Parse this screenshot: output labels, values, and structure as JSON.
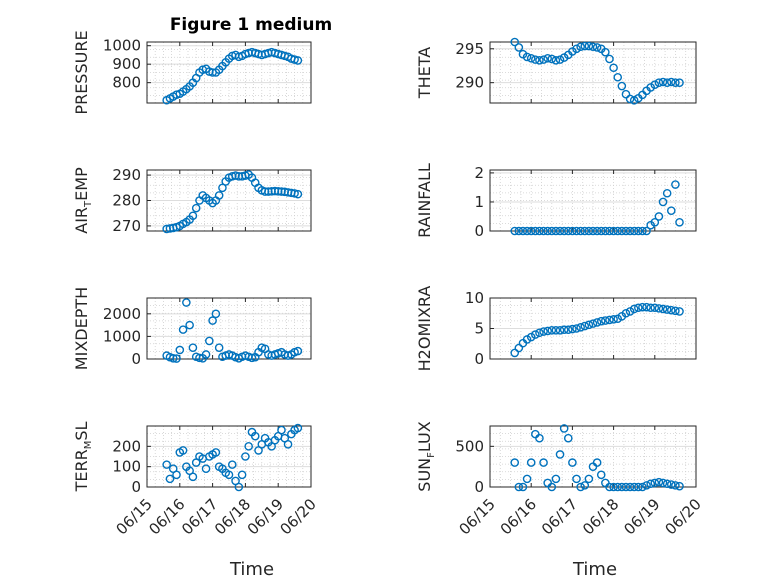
{
  "figure": {
    "title": "Figure 1 medium",
    "x_axis_label": "Time",
    "marker_color": "#0072BD",
    "grid_color": "#cfcfcf"
  },
  "chart_data": [
    {
      "type": "scatter",
      "id": "pressure",
      "ylabel": "PRESSURE",
      "xlim": [
        0,
        5
      ],
      "ylim": [
        690,
        1020
      ],
      "yticks": [
        800,
        900,
        1000
      ],
      "xticks": [
        0,
        1,
        2,
        3,
        4,
        5
      ],
      "xticklabels": [],
      "grid": true,
      "x": [
        0.6,
        0.7,
        0.8,
        0.9,
        1.0,
        1.1,
        1.2,
        1.3,
        1.4,
        1.5,
        1.6,
        1.7,
        1.8,
        1.9,
        2.0,
        2.1,
        2.2,
        2.3,
        2.4,
        2.5,
        2.6,
        2.7,
        2.8,
        2.9,
        3.0,
        3.1,
        3.2,
        3.3,
        3.4,
        3.5,
        3.6,
        3.7,
        3.8,
        3.9,
        4.0,
        4.1,
        4.2,
        4.3,
        4.4,
        4.5,
        4.6
      ],
      "y": [
        705,
        715,
        725,
        735,
        740,
        752,
        765,
        780,
        800,
        825,
        855,
        870,
        875,
        860,
        855,
        855,
        870,
        890,
        910,
        930,
        945,
        950,
        940,
        945,
        955,
        960,
        965,
        960,
        955,
        950,
        955,
        960,
        965,
        960,
        955,
        950,
        945,
        940,
        930,
        925,
        920
      ]
    },
    {
      "type": "scatter",
      "id": "theta",
      "ylabel": "THETA",
      "xlim": [
        0,
        5
      ],
      "ylim": [
        287,
        296
      ],
      "yticks": [
        290,
        295
      ],
      "xticks": [
        0,
        1,
        2,
        3,
        4,
        5
      ],
      "xticklabels": [],
      "grid": true,
      "x": [
        0.6,
        0.7,
        0.8,
        0.9,
        1.0,
        1.1,
        1.2,
        1.3,
        1.4,
        1.5,
        1.6,
        1.7,
        1.8,
        1.9,
        2.0,
        2.1,
        2.2,
        2.3,
        2.4,
        2.5,
        2.6,
        2.7,
        2.8,
        2.9,
        3.0,
        3.1,
        3.2,
        3.3,
        3.4,
        3.5,
        3.6,
        3.7,
        3.8,
        3.9,
        4.0,
        4.1,
        4.2,
        4.3,
        4.4,
        4.5,
        4.6
      ],
      "y": [
        296,
        295.2,
        294.2,
        293.8,
        293.6,
        293.4,
        293.3,
        293.4,
        293.6,
        293.5,
        293.3,
        293.4,
        293.7,
        294.1,
        294.6,
        295.0,
        295.3,
        295.4,
        295.4,
        295.3,
        295.2,
        295.0,
        294.5,
        293.5,
        292.2,
        290.8,
        289.5,
        288.3,
        287.6,
        287.4,
        287.7,
        288.2,
        288.8,
        289.3,
        289.7,
        290.0,
        290.1,
        290.0,
        290.1,
        290.0,
        290.0
      ]
    },
    {
      "type": "scatter",
      "id": "air_temp",
      "ylabel": "AIR",
      "ylabel_sub": "T",
      "ylabel_rest": "EMP",
      "xlim": [
        0,
        5
      ],
      "ylim": [
        268,
        292
      ],
      "yticks": [
        270,
        280,
        290
      ],
      "xticks": [
        0,
        1,
        2,
        3,
        4,
        5
      ],
      "xticklabels": [],
      "grid": true,
      "x": [
        0.6,
        0.7,
        0.8,
        0.9,
        1.0,
        1.1,
        1.2,
        1.3,
        1.4,
        1.5,
        1.6,
        1.7,
        1.8,
        1.9,
        2.0,
        2.1,
        2.2,
        2.3,
        2.4,
        2.5,
        2.6,
        2.7,
        2.8,
        2.9,
        3.0,
        3.1,
        3.2,
        3.3,
        3.4,
        3.5,
        3.6,
        3.7,
        3.8,
        3.9,
        4.0,
        4.1,
        4.2,
        4.3,
        4.4,
        4.5,
        4.6
      ],
      "y": [
        268.8,
        269.0,
        269.2,
        269.5,
        270.0,
        270.8,
        271.5,
        272.5,
        274,
        277,
        280,
        282,
        281,
        280,
        279,
        280,
        282,
        285,
        287.5,
        289,
        289.5,
        289.8,
        289.5,
        289.5,
        289.8,
        290.2,
        289,
        287,
        285,
        284,
        283.5,
        283.5,
        283.6,
        283.7,
        283.6,
        283.5,
        283.4,
        283.2,
        283.0,
        282.8,
        282.5
      ]
    },
    {
      "type": "scatter",
      "id": "rainfall",
      "ylabel": "RAINFALL",
      "xlim": [
        0,
        5
      ],
      "ylim": [
        0,
        2.1
      ],
      "yticks": [
        0,
        1,
        2
      ],
      "xticks": [
        0,
        1,
        2,
        3,
        4,
        5
      ],
      "xticklabels": [],
      "grid": true,
      "x": [
        0.6,
        0.7,
        0.8,
        0.9,
        1.0,
        1.1,
        1.2,
        1.3,
        1.4,
        1.5,
        1.6,
        1.7,
        1.8,
        1.9,
        2.0,
        2.1,
        2.2,
        2.3,
        2.4,
        2.5,
        2.6,
        2.7,
        2.8,
        2.9,
        3.0,
        3.1,
        3.2,
        3.3,
        3.4,
        3.5,
        3.6,
        3.7,
        3.8,
        3.9,
        4.0,
        4.1,
        4.2,
        4.3,
        4.4,
        4.5,
        4.6
      ],
      "y": [
        0,
        0,
        0,
        0,
        0,
        0,
        0,
        0,
        0,
        0,
        0,
        0,
        0,
        0,
        0,
        0,
        0,
        0,
        0,
        0,
        0,
        0,
        0,
        0,
        0,
        0,
        0,
        0,
        0,
        0,
        0,
        0,
        0,
        0.2,
        0.3,
        0.5,
        1.0,
        1.3,
        0.7,
        1.6,
        0.3
      ]
    },
    {
      "type": "scatter",
      "id": "mixdepth",
      "ylabel": "MIXDEPTH",
      "xlim": [
        0,
        5
      ],
      "ylim": [
        0,
        2700
      ],
      "yticks": [
        0,
        1000,
        2000
      ],
      "xticks": [
        0,
        1,
        2,
        3,
        4,
        5
      ],
      "xticklabels": [],
      "grid": true,
      "x": [
        0.6,
        0.7,
        0.8,
        0.9,
        1.0,
        1.1,
        1.2,
        1.3,
        1.4,
        1.5,
        1.6,
        1.7,
        1.8,
        1.9,
        2.0,
        2.1,
        2.2,
        2.3,
        2.4,
        2.5,
        2.6,
        2.7,
        2.8,
        2.9,
        3.0,
        3.1,
        3.2,
        3.3,
        3.4,
        3.5,
        3.6,
        3.7,
        3.8,
        3.9,
        4.0,
        4.1,
        4.2,
        4.3,
        4.4,
        4.5,
        4.6
      ],
      "y": [
        150,
        80,
        30,
        20,
        400,
        1300,
        2500,
        1500,
        500,
        100,
        50,
        30,
        200,
        800,
        1700,
        2000,
        500,
        100,
        150,
        200,
        150,
        80,
        30,
        100,
        150,
        100,
        50,
        80,
        300,
        500,
        450,
        200,
        150,
        200,
        250,
        300,
        200,
        150,
        200,
        300,
        350
      ]
    },
    {
      "type": "scatter",
      "id": "h2omixra",
      "ylabel": "H2OMIXRA",
      "xlim": [
        0,
        5
      ],
      "ylim": [
        0,
        10
      ],
      "yticks": [
        0,
        5,
        10
      ],
      "xticks": [
        0,
        1,
        2,
        3,
        4,
        5
      ],
      "xticklabels": [],
      "grid": true,
      "x": [
        0.6,
        0.7,
        0.8,
        0.9,
        1.0,
        1.1,
        1.2,
        1.3,
        1.4,
        1.5,
        1.6,
        1.7,
        1.8,
        1.9,
        2.0,
        2.1,
        2.2,
        2.3,
        2.4,
        2.5,
        2.6,
        2.7,
        2.8,
        2.9,
        3.0,
        3.1,
        3.2,
        3.3,
        3.4,
        3.5,
        3.6,
        3.7,
        3.8,
        3.9,
        4.0,
        4.1,
        4.2,
        4.3,
        4.4,
        4.5,
        4.6
      ],
      "y": [
        1.0,
        1.8,
        2.6,
        3.2,
        3.6,
        4.0,
        4.3,
        4.5,
        4.6,
        4.7,
        4.7,
        4.7,
        4.8,
        4.8,
        4.9,
        5.0,
        5.2,
        5.4,
        5.6,
        5.8,
        6.0,
        6.2,
        6.3,
        6.4,
        6.5,
        6.6,
        7.0,
        7.5,
        7.8,
        8.2,
        8.4,
        8.5,
        8.5,
        8.4,
        8.4,
        8.3,
        8.2,
        8.1,
        8.0,
        7.9,
        7.8
      ]
    },
    {
      "type": "scatter",
      "id": "terr_msl",
      "ylabel": "TERR",
      "ylabel_sub": "M",
      "ylabel_rest": "SL",
      "xlim": [
        0,
        5
      ],
      "ylim": [
        0,
        300
      ],
      "yticks": [
        0,
        100,
        200
      ],
      "xticks": [
        0,
        1,
        2,
        3,
        4,
        5
      ],
      "xticklabels": [
        "06/15",
        "06/16",
        "06/17",
        "06/18",
        "06/19",
        "06/20"
      ],
      "grid": true,
      "x": [
        0.6,
        0.7,
        0.8,
        0.9,
        1.0,
        1.1,
        1.2,
        1.3,
        1.4,
        1.5,
        1.6,
        1.7,
        1.8,
        1.9,
        2.0,
        2.1,
        2.2,
        2.3,
        2.4,
        2.5,
        2.6,
        2.7,
        2.8,
        2.9,
        3.0,
        3.1,
        3.2,
        3.3,
        3.4,
        3.5,
        3.6,
        3.7,
        3.8,
        3.9,
        4.0,
        4.1,
        4.2,
        4.3,
        4.4,
        4.5,
        4.6
      ],
      "y": [
        110,
        40,
        90,
        60,
        170,
        180,
        100,
        80,
        50,
        120,
        150,
        140,
        90,
        150,
        160,
        170,
        100,
        90,
        70,
        60,
        110,
        30,
        0,
        60,
        150,
        200,
        270,
        250,
        180,
        210,
        240,
        220,
        200,
        230,
        250,
        280,
        240,
        210,
        260,
        280,
        290
      ]
    },
    {
      "type": "scatter",
      "id": "sun_flux",
      "ylabel": "SUN",
      "ylabel_sub": "F",
      "ylabel_rest": "LUX",
      "xlim": [
        0,
        5
      ],
      "ylim": [
        0,
        750
      ],
      "yticks": [
        0,
        500
      ],
      "xticks": [
        0,
        1,
        2,
        3,
        4,
        5
      ],
      "xticklabels": [
        "06/15",
        "06/16",
        "06/17",
        "06/18",
        "06/19",
        "06/20"
      ],
      "grid": true,
      "x": [
        0.6,
        0.7,
        0.8,
        0.9,
        1.0,
        1.1,
        1.2,
        1.3,
        1.4,
        1.5,
        1.6,
        1.7,
        1.8,
        1.9,
        2.0,
        2.1,
        2.2,
        2.3,
        2.4,
        2.5,
        2.6,
        2.7,
        2.8,
        2.9,
        3.0,
        3.1,
        3.2,
        3.3,
        3.4,
        3.5,
        3.6,
        3.7,
        3.8,
        3.9,
        4.0,
        4.1,
        4.2,
        4.3,
        4.4,
        4.5,
        4.6
      ],
      "y": [
        300,
        0,
        0,
        100,
        300,
        650,
        600,
        300,
        50,
        0,
        100,
        400,
        720,
        600,
        300,
        100,
        0,
        20,
        100,
        250,
        300,
        150,
        50,
        0,
        0,
        0,
        0,
        0,
        0,
        0,
        0,
        0,
        20,
        40,
        50,
        60,
        50,
        40,
        30,
        20,
        10
      ]
    }
  ]
}
